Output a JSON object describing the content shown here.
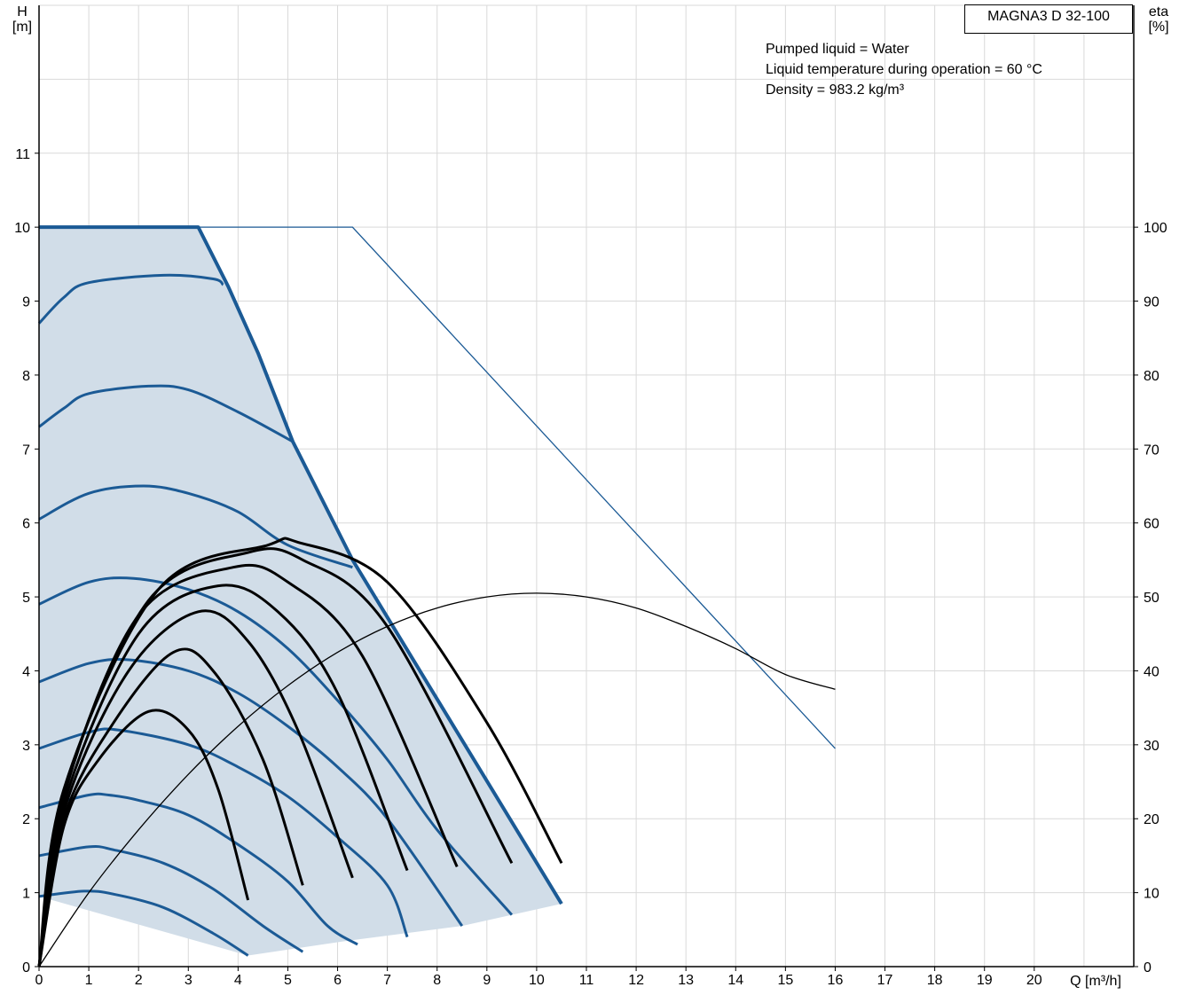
{
  "model": "MAGNA3 D 32-100",
  "notes": [
    "Pumped liquid = Water",
    "Liquid temperature during operation = 60 °C",
    "Density = 983.2 kg/m³"
  ],
  "axes": {
    "left_symbol": "H",
    "left_unit": "[m]",
    "right_symbol": "eta",
    "right_unit": "[%]",
    "x_label": "Q [m³/h]"
  },
  "colors": {
    "blue": "#1b5a95",
    "area": "#d1dde8",
    "grid": "#d9d9d9",
    "black": "#000000"
  },
  "chart_data": {
    "type": "line",
    "x_axis": {
      "range": [
        0,
        22
      ],
      "ticks": [
        0,
        1,
        2,
        3,
        4,
        5,
        6,
        7,
        8,
        9,
        10,
        11,
        12,
        13,
        14,
        15,
        16,
        17,
        18,
        19,
        20
      ]
    },
    "y_left": {
      "range": [
        0,
        13
      ],
      "ticks": [
        0,
        1,
        2,
        3,
        4,
        5,
        6,
        7,
        8,
        9,
        10,
        11
      ]
    },
    "y_right": {
      "range": [
        0,
        130
      ],
      "ticks": [
        0,
        10,
        20,
        30,
        40,
        50,
        60,
        70,
        80,
        90,
        100
      ]
    },
    "grid": true,
    "operating_area_boundary": [
      [
        0,
        10
      ],
      [
        3.2,
        10
      ],
      [
        3.8,
        9.2
      ],
      [
        4.4,
        8.3
      ],
      [
        5.1,
        7.1
      ],
      [
        6.3,
        5.5
      ],
      [
        10.5,
        0.85
      ],
      [
        8.5,
        0.55
      ],
      [
        6.2,
        0.35
      ],
      [
        4.2,
        0.15
      ],
      [
        0,
        0.95
      ]
    ],
    "max_curve": [
      [
        0,
        10
      ],
      [
        6.3,
        10
      ],
      [
        16,
        2.95
      ]
    ],
    "efficiency_curve_total": [
      [
        0,
        0
      ],
      [
        1,
        10
      ],
      [
        2,
        18.5
      ],
      [
        3,
        26
      ],
      [
        4,
        32.5
      ],
      [
        5,
        38
      ],
      [
        6,
        42.5
      ],
      [
        7,
        46
      ],
      [
        8,
        48.5
      ],
      [
        9,
        50
      ],
      [
        10,
        50.5
      ],
      [
        11,
        50
      ],
      [
        12,
        48.5
      ],
      [
        13,
        46
      ],
      [
        14,
        43
      ],
      [
        15,
        39.5
      ],
      [
        16,
        37.5
      ]
    ],
    "head_curves": [
      {
        "points": [
          [
            0,
            8.7
          ],
          [
            0.5,
            9.05
          ],
          [
            1,
            9.25
          ],
          [
            2.5,
            9.35
          ],
          [
            3.5,
            9.3
          ],
          [
            3.7,
            9.22
          ]
        ]
      },
      {
        "points": [
          [
            0,
            7.3
          ],
          [
            0.5,
            7.55
          ],
          [
            1,
            7.75
          ],
          [
            2.2,
            7.85
          ],
          [
            3,
            7.8
          ],
          [
            4,
            7.5
          ],
          [
            5.1,
            7.1
          ]
        ]
      },
      {
        "points": [
          [
            0,
            6.05
          ],
          [
            1,
            6.4
          ],
          [
            2.1,
            6.5
          ],
          [
            3,
            6.4
          ],
          [
            4,
            6.15
          ],
          [
            5,
            5.7
          ],
          [
            6.3,
            5.4
          ]
        ]
      },
      {
        "points": [
          [
            0,
            4.9
          ],
          [
            1,
            5.2
          ],
          [
            1.9,
            5.25
          ],
          [
            3,
            5.1
          ],
          [
            4,
            4.8
          ],
          [
            5,
            4.3
          ],
          [
            6,
            3.6
          ],
          [
            7,
            2.8
          ],
          [
            8,
            1.85
          ],
          [
            9.5,
            0.7
          ]
        ]
      },
      {
        "points": [
          [
            0,
            3.85
          ],
          [
            1,
            4.1
          ],
          [
            1.8,
            4.15
          ],
          [
            3,
            4.0
          ],
          [
            4,
            3.7
          ],
          [
            5,
            3.25
          ],
          [
            6,
            2.7
          ],
          [
            7,
            2.0
          ],
          [
            8.5,
            0.55
          ]
        ]
      },
      {
        "points": [
          [
            0,
            2.95
          ],
          [
            1,
            3.17
          ],
          [
            1.6,
            3.2
          ],
          [
            3,
            3.0
          ],
          [
            4,
            2.7
          ],
          [
            5,
            2.3
          ],
          [
            6,
            1.75
          ],
          [
            7,
            1.1
          ],
          [
            7.4,
            0.4
          ]
        ]
      },
      {
        "points": [
          [
            0,
            2.15
          ],
          [
            1,
            2.32
          ],
          [
            1.4,
            2.32
          ],
          [
            2,
            2.25
          ],
          [
            3,
            2.05
          ],
          [
            4,
            1.65
          ],
          [
            5,
            1.15
          ],
          [
            5.8,
            0.55
          ],
          [
            6.4,
            0.3
          ]
        ]
      },
      {
        "points": [
          [
            0,
            1.5
          ],
          [
            1,
            1.62
          ],
          [
            1.5,
            1.58
          ],
          [
            2.5,
            1.4
          ],
          [
            3.5,
            1.05
          ],
          [
            4.5,
            0.55
          ],
          [
            5.3,
            0.2
          ]
        ]
      },
      {
        "points": [
          [
            0,
            0.95
          ],
          [
            0.9,
            1.02
          ],
          [
            1.5,
            0.98
          ],
          [
            2.5,
            0.8
          ],
          [
            3.5,
            0.45
          ],
          [
            4.2,
            0.15
          ]
        ]
      }
    ],
    "efficiency_curves": [
      {
        "points": [
          [
            0,
            0
          ],
          [
            0.5,
            19
          ],
          [
            1.2,
            28
          ],
          [
            2.2,
            34.5
          ],
          [
            3,
            32
          ],
          [
            3.6,
            24
          ],
          [
            4.2,
            9
          ]
        ]
      },
      {
        "points": [
          [
            0,
            0
          ],
          [
            0.5,
            20
          ],
          [
            1.5,
            33
          ],
          [
            2.7,
            42.5
          ],
          [
            3.5,
            40
          ],
          [
            4.5,
            28
          ],
          [
            5.3,
            11
          ]
        ]
      },
      {
        "points": [
          [
            0,
            0
          ],
          [
            0.5,
            21
          ],
          [
            1.8,
            40
          ],
          [
            3.2,
            48
          ],
          [
            4.2,
            44
          ],
          [
            5.2,
            32
          ],
          [
            6.3,
            12
          ]
        ]
      },
      {
        "points": [
          [
            0,
            0
          ],
          [
            0.5,
            22
          ],
          [
            2,
            45
          ],
          [
            3.6,
            51.5
          ],
          [
            4.8,
            48
          ],
          [
            6,
            37
          ],
          [
            7.4,
            13
          ]
        ]
      },
      {
        "points": [
          [
            0,
            0
          ],
          [
            0.5,
            23
          ],
          [
            2,
            47.5
          ],
          [
            3.9,
            54
          ],
          [
            5,
            52
          ],
          [
            6.5,
            42
          ],
          [
            8.4,
            13.5
          ]
        ]
      },
      {
        "points": [
          [
            0,
            0
          ],
          [
            0.5,
            23.5
          ],
          [
            2.2,
            49.5
          ],
          [
            4.2,
            56
          ],
          [
            5.3,
            55
          ],
          [
            7,
            46
          ],
          [
            9.5,
            14
          ]
        ]
      },
      {
        "points": [
          [
            0,
            0
          ],
          [
            0.5,
            24
          ],
          [
            2.4,
            51
          ],
          [
            4.6,
            57
          ],
          [
            5.2,
            57.4
          ],
          [
            7,
            52
          ],
          [
            9,
            33
          ],
          [
            10.5,
            14
          ]
        ]
      }
    ]
  }
}
